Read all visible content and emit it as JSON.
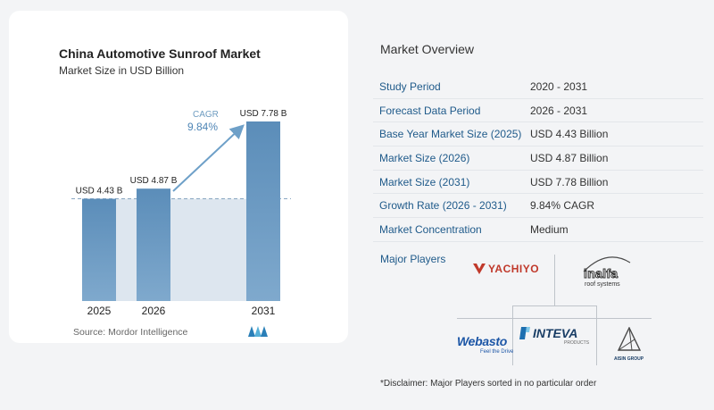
{
  "chart_data": {
    "type": "bar",
    "title": "China Automotive Sunroof Market",
    "subtitle": "Market Size in USD Billion",
    "categories": [
      "2025",
      "2026",
      "2031"
    ],
    "values": [
      4.43,
      4.87,
      7.78
    ],
    "value_labels": [
      "USD 4.43 B",
      "USD 4.87 B",
      "USD 7.78 B"
    ],
    "cagr_label": "CAGR",
    "cagr_value": "9.84%",
    "ylim": [
      0,
      7.78
    ],
    "grid": false,
    "colors": {
      "bar": "#6f9ec6",
      "bar_top": "#5b8db9",
      "band": "#dde6ef",
      "arrow": "#6ea0c8"
    }
  },
  "source": "Source:  Mordor Intelligence",
  "overview": {
    "title": "Market Overview",
    "rows": [
      {
        "key": "Study Period",
        "value": "2020 - 2031"
      },
      {
        "key": "Forecast Data Period",
        "value": "2026 - 2031"
      },
      {
        "key": "Base Year Market Size (2025)",
        "value": "USD 4.43 Billion"
      },
      {
        "key": "Market Size (2026)",
        "value": "USD 4.87 Billion"
      },
      {
        "key": "Market Size (2031)",
        "value": "USD 7.78 Billion"
      },
      {
        "key": "Growth Rate (2026 - 2031)",
        "value": "9.84% CAGR"
      },
      {
        "key": "Market Concentration",
        "value": "Medium"
      }
    ]
  },
  "players": {
    "title": "Major Players",
    "logos": {
      "yachiyo": "YACHIYO",
      "inalfa": "inalfa",
      "inalfa_sub": "roof systems",
      "inteva": "INTEVA",
      "inteva_sub": "PRODUCTS",
      "webasto": "Webasto",
      "webasto_sub": "Feel the Drive",
      "aisin": "AISIN GROUP"
    }
  },
  "disclaimer": "*Disclaimer: Major Players sorted in no particular order"
}
